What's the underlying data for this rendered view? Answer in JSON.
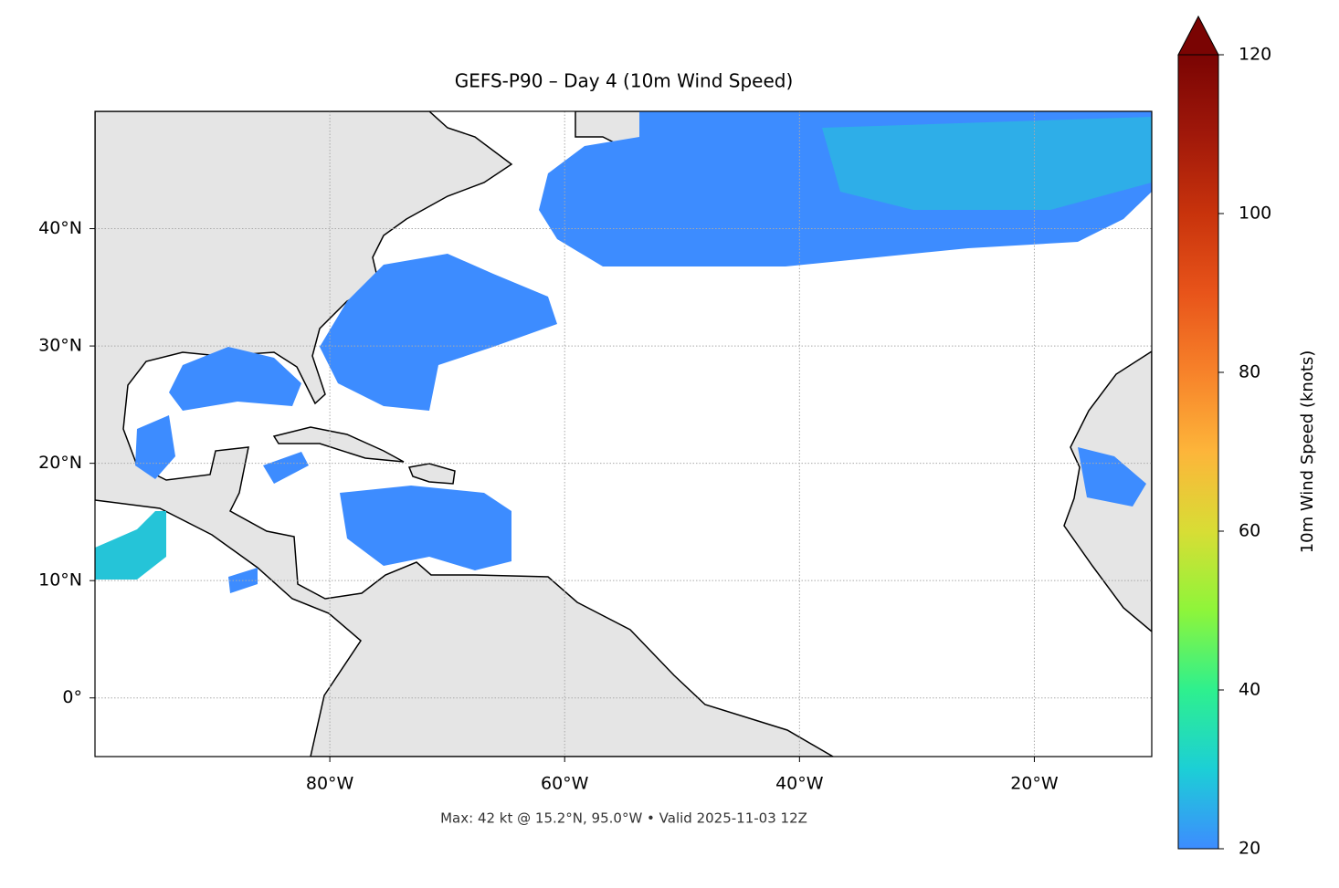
{
  "chart_data": {
    "type": "map",
    "title": "GEFS-P90 – Day 4 (10m Wind Speed)",
    "annotation": "Max: 42 kt @ 15.2°N, 95.0°W • Valid 2025-11-03 12Z",
    "xlim": [
      -100,
      -10
    ],
    "ylim": [
      -5,
      50
    ],
    "xticks": [
      {
        "value": -80,
        "label": "80°W"
      },
      {
        "value": -60,
        "label": "60°W"
      },
      {
        "value": -40,
        "label": "40°W"
      },
      {
        "value": -20,
        "label": "20°W"
      }
    ],
    "yticks": [
      {
        "value": 0,
        "label": "0°"
      },
      {
        "value": 10,
        "label": "10°N"
      },
      {
        "value": 20,
        "label": "20°N"
      },
      {
        "value": 30,
        "label": "30°N"
      },
      {
        "value": 40,
        "label": "40°N"
      }
    ],
    "grid": true,
    "colorbar": {
      "label": "10m Wind Speed (knots)",
      "clim": [
        20,
        120
      ],
      "ticks": [
        20,
        40,
        60,
        80,
        100,
        120
      ],
      "colormap": [
        "#3d8cff",
        "#1ccfd6",
        "#2ef08e",
        "#8ef53a",
        "#d8dd35",
        "#fdb53a",
        "#f7822a",
        "#e8541a",
        "#c8330c",
        "#a0180a",
        "#7a0403"
      ]
    }
  }
}
